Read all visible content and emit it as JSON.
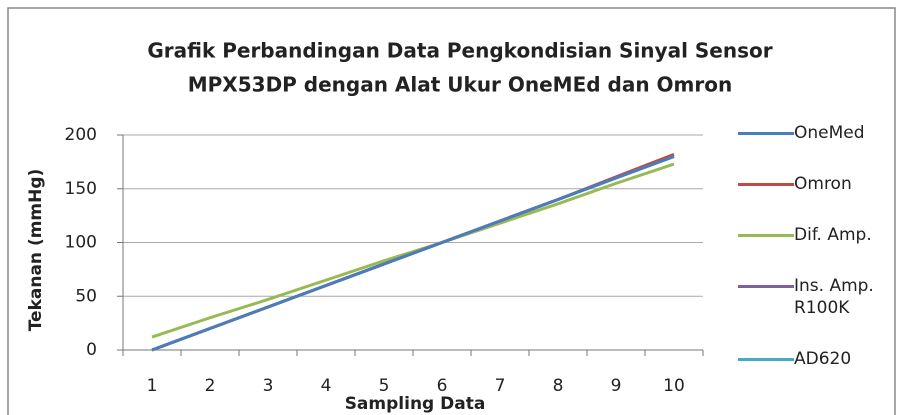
{
  "chart_data": {
    "type": "line",
    "title": [
      "Grafik Perbandingan Data Pengkondisian Sinyal Sensor",
      "MPX53DP dengan Alat Ukur OneMEd dan Omron"
    ],
    "x_label": "Sampling Data",
    "y_label": "Tekanan (mmHg)",
    "categories": [
      1,
      2,
      3,
      4,
      5,
      6,
      7,
      8,
      9,
      10
    ],
    "series": [
      {
        "name": "OneMed",
        "color": "#4a7ebb",
        "values": [
          0,
          20,
          40,
          60,
          80,
          100,
          120,
          140,
          160,
          180
        ]
      },
      {
        "name": "Omron",
        "color": "#be4b48",
        "values": [
          0,
          20,
          40,
          60,
          80,
          100,
          120,
          140,
          161,
          182
        ]
      },
      {
        "name": "Dif. Amp.",
        "color": "#98b954",
        "values": [
          12,
          30,
          47,
          65,
          83,
          100,
          118,
          136,
          155,
          173
        ]
      },
      {
        "name": "Ins. Amp. R100K",
        "color": "#7d60a0",
        "values": [
          0,
          20,
          40,
          60,
          80,
          100,
          120,
          140,
          160,
          180
        ]
      },
      {
        "name": "AD620",
        "color": "#46aac5",
        "values": [
          0,
          20,
          40,
          60,
          80,
          100,
          120,
          140,
          160,
          180
        ]
      }
    ],
    "ylim": [
      0,
      200
    ],
    "yticks": [
      0,
      50,
      100,
      150,
      200
    ],
    "grid": true
  }
}
